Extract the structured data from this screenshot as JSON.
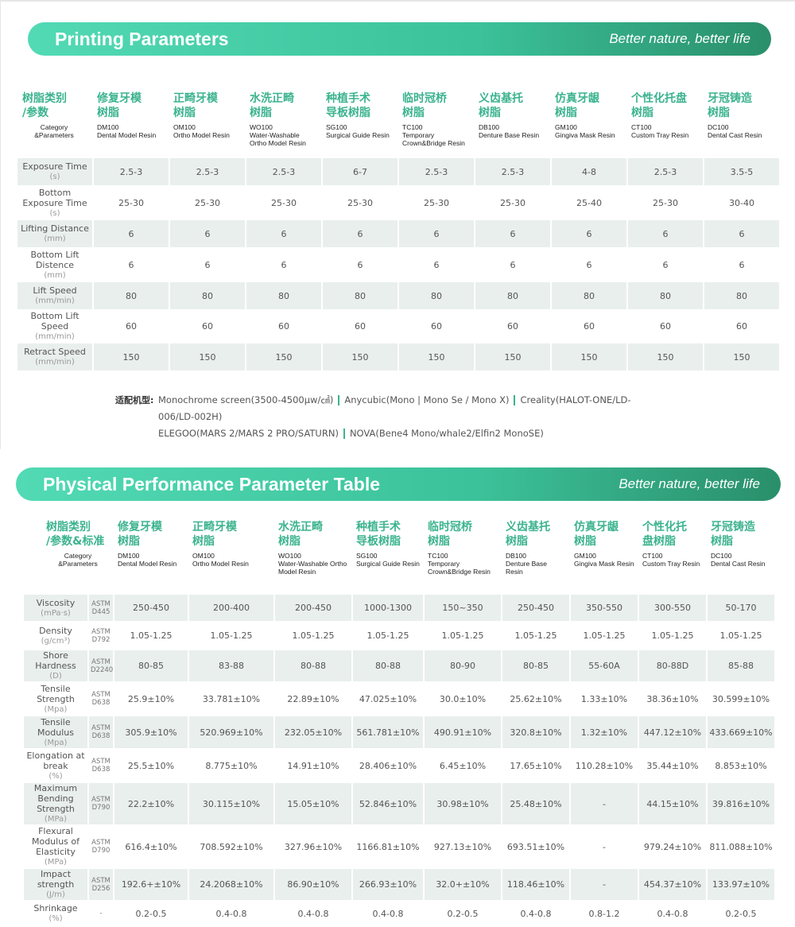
{
  "section1": {
    "title": "Printing Parameters",
    "slogan": "Better nature, better life",
    "header": {
      "corner": {
        "zh": [
          "树脂类别",
          "/参数"
        ],
        "en": "Category &Parameters"
      },
      "columns": [
        {
          "zh": [
            "修复牙模",
            "树脂"
          ],
          "code": "DM100",
          "en": "Dental Model Resin"
        },
        {
          "zh": [
            "正畸牙模",
            "树脂"
          ],
          "code": "OM100",
          "en": "Ortho Model Resin"
        },
        {
          "zh": [
            "水洗正畸",
            "树脂"
          ],
          "code": "WO100",
          "en": "Water-Washable Ortho Model Resin"
        },
        {
          "zh": [
            "种植手术",
            "导板树脂"
          ],
          "code": "SG100",
          "en": "Surgical Guide Resin"
        },
        {
          "zh": [
            "临时冠桥",
            "树脂"
          ],
          "code": "TC100",
          "en": "Temporary Crown&Bridge Resin"
        },
        {
          "zh": [
            "义齿基托",
            "树脂"
          ],
          "code": "DB100",
          "en": "Denture Base Resin"
        },
        {
          "zh": [
            "仿真牙龈",
            "树脂"
          ],
          "code": "GM100",
          "en": "Gingiva Mask Resin"
        },
        {
          "zh": [
            "个性化托盘",
            "树脂"
          ],
          "code": "CT100",
          "en": "Custom Tray Resin"
        },
        {
          "zh": [
            "牙冠铸造",
            "树脂"
          ],
          "code": "DC100",
          "en": "Dental Cast Resin"
        }
      ]
    },
    "rows": [
      {
        "label": "Exposure Time",
        "unit": "(s)",
        "cells": [
          "2.5-3",
          "2.5-3",
          "2.5-3",
          "6-7",
          "2.5-3",
          "2.5-3",
          "4-8",
          "2.5-3",
          "3.5-5"
        ]
      },
      {
        "label": "Bottom Exposure Time",
        "unit": "(s)",
        "cells": [
          "25-30",
          "25-30",
          "25-30",
          "25-30",
          "25-30",
          "25-30",
          "25-40",
          "25-30",
          "30-40"
        ]
      },
      {
        "label": "Lifting Distance",
        "unit": "(mm)",
        "cells": [
          "6",
          "6",
          "6",
          "6",
          "6",
          "6",
          "6",
          "6",
          "6"
        ]
      },
      {
        "label": "Bottom Lift Distence",
        "unit": "(mm)",
        "cells": [
          "6",
          "6",
          "6",
          "6",
          "6",
          "6",
          "6",
          "6",
          "6"
        ]
      },
      {
        "label": "Lift Speed",
        "unit": "(mm/min)",
        "cells": [
          "80",
          "80",
          "80",
          "80",
          "80",
          "80",
          "80",
          "80",
          "80"
        ]
      },
      {
        "label": "Bottom Lift Speed",
        "unit": "(mm/min)",
        "cells": [
          "60",
          "60",
          "60",
          "60",
          "60",
          "60",
          "60",
          "60",
          "60"
        ]
      },
      {
        "label": "Retract Speed",
        "unit": "(mm/min)",
        "cells": [
          "150",
          "150",
          "150",
          "150",
          "150",
          "150",
          "150",
          "150",
          "150"
        ]
      }
    ],
    "compat": {
      "label": "适配机型:",
      "items": [
        "Monochrome screen(3500-4500μw/㎠)",
        "Anycubic(Mono | Mono Se / Mono X)",
        "Creality(HALOT-ONE/LD-006/LD-002H)",
        "ELEGOO(MARS 2/MARS 2 PRO/SATURN)",
        "NOVA(Bene4 Mono/whale2/Elfin2 MonoSE)"
      ]
    }
  },
  "section2": {
    "title": "Physical Performance Parameter Table",
    "slogan": "Better nature, better life",
    "header": {
      "corner": {
        "zh": [
          "树脂类别",
          "/参数&标准"
        ],
        "en": "Category &Parameters"
      },
      "columns": [
        {
          "zh": [
            "修复牙模",
            "树脂"
          ],
          "code": "DM100",
          "en": "Dental Model Resin"
        },
        {
          "zh": [
            "正畸牙模",
            "树脂"
          ],
          "code": "OM100",
          "en": "Ortho Model Resin"
        },
        {
          "zh": [
            "水洗正畸",
            "树脂"
          ],
          "code": "WO100",
          "en": "Water-Washable Ortho Model Resin"
        },
        {
          "zh": [
            "种植手术",
            "导板树脂"
          ],
          "code": "SG100",
          "en": "Surgical Guide Resin"
        },
        {
          "zh": [
            "临时冠桥",
            "树脂"
          ],
          "code": "TC100",
          "en": "Temporary Crown&Bridge Resin"
        },
        {
          "zh": [
            "义齿基托",
            "树脂"
          ],
          "code": "DB100",
          "en": "Denture Base Resin"
        },
        {
          "zh": [
            "仿真牙龈",
            "树脂"
          ],
          "code": "GM100",
          "en": "Gingiva Mask Resin"
        },
        {
          "zh": [
            "个性化托",
            "盘树脂"
          ],
          "code": "CT100",
          "en": "Custom Tray Resin"
        },
        {
          "zh": [
            "牙冠铸造",
            "树脂"
          ],
          "code": "DC100",
          "en": "Dental Cast Resin"
        }
      ]
    },
    "rows": [
      {
        "label": "Viscosity",
        "unit": "(mPa·s)",
        "astm": "ASTM D445",
        "cells": [
          "250-450",
          "200-400",
          "200-450",
          "1000-1300",
          "150~350",
          "250-450",
          "350-550",
          "300-550",
          "50-170"
        ]
      },
      {
        "label": "Density",
        "unit": "(g/cm³)",
        "astm": "ASTM D792",
        "cells": [
          "1.05-1.25",
          "1.05-1.25",
          "1.05-1.25",
          "1.05-1.25",
          "1.05-1.25",
          "1.05-1.25",
          "1.05-1.25",
          "1.05-1.25",
          "1.05-1.25"
        ]
      },
      {
        "label": "Shore Hardness",
        "unit": "(D)",
        "astm": "ASTM D2240",
        "cells": [
          "80-85",
          "83-88",
          "80-88",
          "80-88",
          "80-90",
          "80-85",
          "55-60A",
          "80-88D",
          "85-88"
        ]
      },
      {
        "label": "Tensile Strength",
        "unit": "(Mpa)",
        "astm": "ASTM D638",
        "cells": [
          "25.9±10%",
          "33.781±10%",
          "22.89±10%",
          "47.025±10%",
          "30.0±10%",
          "25.62±10%",
          "1.33±10%",
          "38.36±10%",
          "30.599±10%"
        ]
      },
      {
        "label": "Tensile Modulus",
        "unit": "(Mpa)",
        "astm": "ASTM D638",
        "cells": [
          "305.9±10%",
          "520.969±10%",
          "232.05±10%",
          "561.781±10%",
          "490.91±10%",
          "320.8±10%",
          "1.32±10%",
          "447.12±10%",
          "433.669±10%"
        ]
      },
      {
        "label": "Elongation at break",
        "unit": "(%)",
        "astm": "ASTM D638",
        "cells": [
          "25.5±10%",
          "8.775±10%",
          "14.91±10%",
          "28.406±10%",
          "6.45±10%",
          "17.65±10%",
          "110.28±10%",
          "35.44±10%",
          "8.853±10%"
        ]
      },
      {
        "label": "Maximum Bending Strength",
        "unit": "(MPa)",
        "astm": "ASTM D790",
        "cells": [
          "22.2±10%",
          "30.115±10%",
          "15.05±10%",
          "52.846±10%",
          "30.98±10%",
          "25.48±10%",
          "-",
          "44.15±10%",
          "39.816±10%"
        ]
      },
      {
        "label": "Flexural Modulus of Elasticity",
        "unit": "(MPa)",
        "astm": "ASTM D790",
        "cells": [
          "616.4±10%",
          "708.592±10%",
          "327.96±10%",
          "1166.81±10%",
          "927.13±10%",
          "693.51±10%",
          "-",
          "979.24±10%",
          "811.088±10%"
        ]
      },
      {
        "label": "Impact strength",
        "unit": "(J/m)",
        "astm": "ASTM D256",
        "cells": [
          "192.6+±10%",
          "24.2068±10%",
          "86.90±10%",
          "266.93±10%",
          "32.0+±10%",
          "118.46±10%",
          "-",
          "454.37±10%",
          "133.97±10%"
        ]
      },
      {
        "label": "Shrinkage",
        "unit": "(%)",
        "astm": "-",
        "cells": [
          "0.2-0.5",
          "0.4-0.8",
          "0.4-0.8",
          "0.4-0.8",
          "0.2-0.5",
          "0.4-0.8",
          "0.8-1.2",
          "0.4-0.8",
          "0.2-0.5"
        ]
      }
    ]
  }
}
